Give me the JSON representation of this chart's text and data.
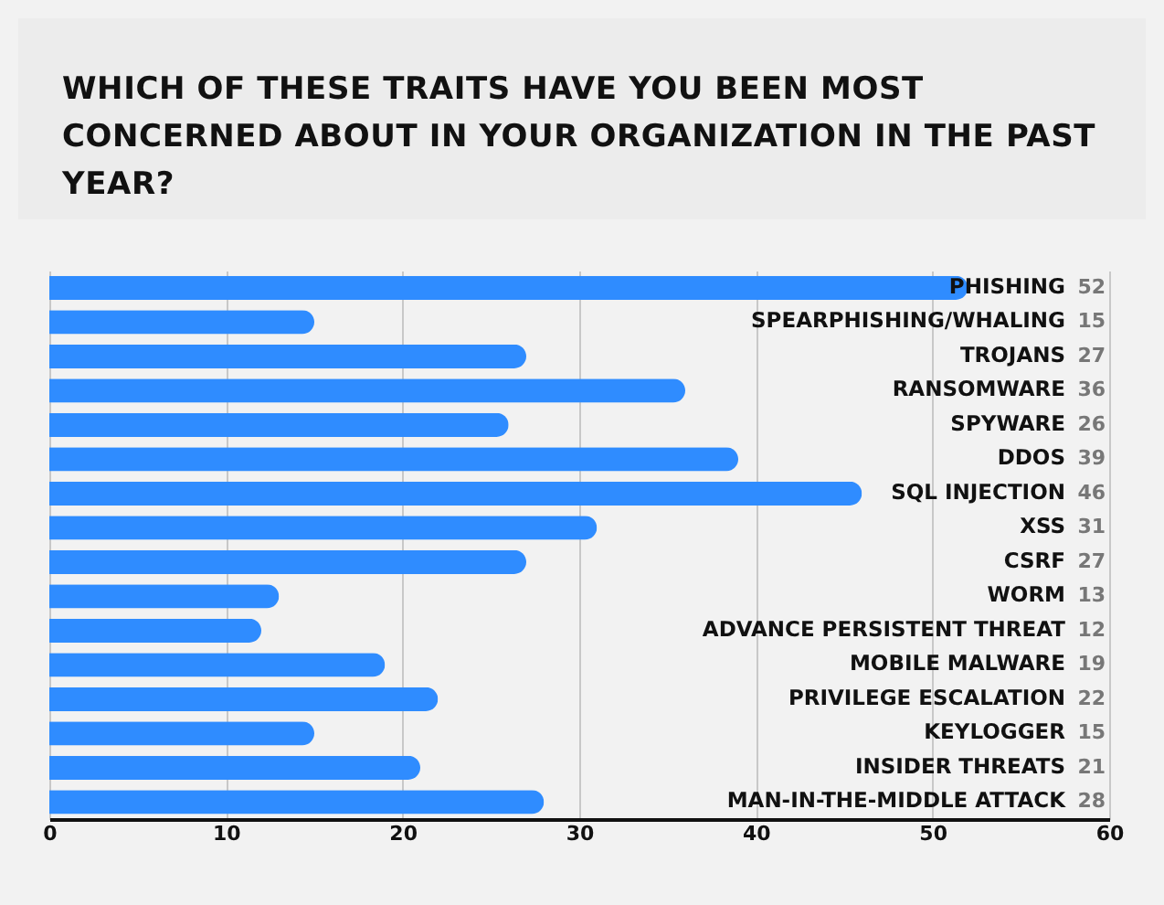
{
  "chart_data": {
    "type": "bar",
    "orientation": "horizontal",
    "title": "WHICH OF THESE TRAITS HAVE YOU BEEN MOST CONCERNED ABOUT IN YOUR ORGANIZATION IN THE PAST YEAR?",
    "categories": [
      "PHISHING",
      "SPEARPHISHING/WHALING",
      "TROJANS",
      "RANSOMWARE",
      "SPYWARE",
      "DDOS",
      "SQL INJECTION",
      "XSS",
      "CSRF",
      "WORM",
      "ADVANCE PERSISTENT THREAT",
      "MOBILE MALWARE",
      "PRIVILEGE ESCALATION",
      "KEYLOGGER",
      "INSIDER THREATS",
      "MAN-IN-THE-MIDDLE ATTACK"
    ],
    "values": [
      52,
      15,
      27,
      36,
      26,
      39,
      46,
      31,
      27,
      13,
      12,
      19,
      22,
      15,
      21,
      28
    ],
    "color": "#2f8cff",
    "xlim": [
      0,
      60
    ],
    "xticks": [
      0,
      10,
      20,
      30,
      40,
      50,
      60
    ],
    "grid": "x",
    "data_labels": true
  }
}
